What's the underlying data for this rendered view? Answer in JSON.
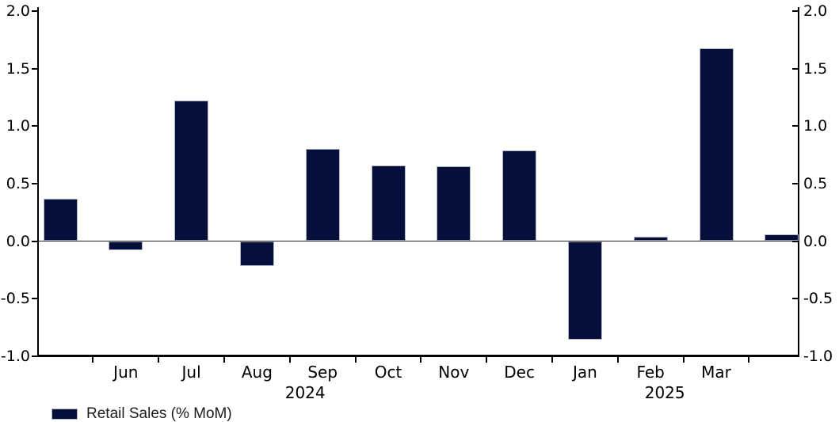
{
  "chart_data": {
    "type": "bar",
    "series": [
      {
        "name": "Retail Sales (% MoM)",
        "values": [
          0.37,
          -0.08,
          1.22,
          -0.22,
          0.8,
          0.66,
          0.65,
          0.79,
          -0.86,
          0.04,
          1.68,
          0.06
        ]
      }
    ],
    "categories": [
      "",
      "Jun",
      "Jul",
      "Aug",
      "Sep",
      "Oct",
      "Nov",
      "Dec",
      "Jan",
      "Feb",
      "Mar",
      ""
    ],
    "year_labels": [
      {
        "text": "2024",
        "slot": 4
      },
      {
        "text": "2025",
        "slot": 9
      }
    ],
    "ylim": [
      -1.0,
      2.0
    ],
    "y_tick_values": [
      2.0,
      1.5,
      1.0,
      0.5,
      0.0,
      -0.5,
      -1.0
    ],
    "y_tick_labels": [
      "2.0",
      "1.5",
      "1.0",
      "0.5",
      "0.0",
      "-0.5",
      "-1.0"
    ],
    "dual_y_axis": true,
    "grid": false,
    "legend_position": "bottom-left",
    "colors": {
      "bar_fill": "#050f3a",
      "bar_edge": "#b3b8c9",
      "axis": "#000000",
      "text": "#000000"
    }
  },
  "legend": {
    "label": "Retail Sales (% MoM)"
  }
}
